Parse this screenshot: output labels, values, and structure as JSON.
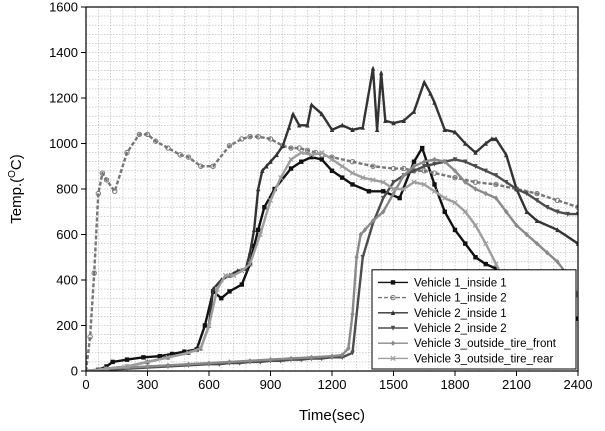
{
  "chart_data": {
    "type": "line",
    "title": "",
    "xlabel": "Time(sec)",
    "ylabel_main": "Temp.(",
    "ylabel_sup": "O",
    "ylabel_tail": "C)",
    "xlim": [
      0,
      2400
    ],
    "ylim": [
      0,
      1600
    ],
    "x_ticks": [
      0,
      300,
      600,
      900,
      1200,
      1500,
      1800,
      2100,
      2400
    ],
    "y_ticks": [
      0,
      200,
      400,
      600,
      800,
      1000,
      1200,
      1400,
      1600
    ],
    "grid": true,
    "legend_position": "bottom-right",
    "series": [
      {
        "name": "Vehicle 1_inside 1",
        "color": "#111111",
        "dash": "",
        "marker": "square",
        "x": [
          0,
          60,
          100,
          130,
          200,
          280,
          360,
          420,
          480,
          540,
          580,
          620,
          660,
          700,
          760,
          800,
          820,
          840,
          870,
          920,
          1000,
          1050,
          1100,
          1150,
          1200,
          1250,
          1300,
          1380,
          1450,
          1530,
          1600,
          1640,
          1700,
          1750,
          1800,
          1850,
          1900,
          1950,
          2000,
          2050,
          2100,
          2150,
          2200,
          2250,
          2300,
          2350,
          2400
        ],
        "y": [
          0,
          5,
          20,
          40,
          50,
          60,
          65,
          75,
          85,
          95,
          200,
          350,
          320,
          350,
          380,
          470,
          550,
          620,
          720,
          800,
          890,
          920,
          940,
          930,
          880,
          850,
          820,
          790,
          790,
          760,
          920,
          980,
          820,
          700,
          620,
          560,
          500,
          470,
          450,
          420,
          400,
          380,
          350,
          330,
          300,
          260,
          230
        ]
      },
      {
        "name": "Vehicle 1_inside 2",
        "color": "#777777",
        "dash": "4 2",
        "marker": "circle",
        "x": [
          0,
          20,
          40,
          60,
          80,
          100,
          140,
          200,
          260,
          300,
          340,
          400,
          460,
          500,
          560,
          620,
          700,
          760,
          800,
          840,
          900,
          960,
          1000,
          1040,
          1080,
          1120,
          1150,
          1200,
          1300,
          1400,
          1500,
          1550,
          1600,
          1650,
          1700,
          1800,
          1900,
          2000,
          2100,
          2200,
          2300,
          2400
        ],
        "y": [
          0,
          150,
          430,
          780,
          870,
          840,
          790,
          960,
          1040,
          1040,
          1010,
          980,
          950,
          940,
          900,
          900,
          990,
          1020,
          1030,
          1030,
          1020,
          990,
          980,
          980,
          970,
          960,
          950,
          940,
          920,
          900,
          890,
          890,
          880,
          880,
          870,
          850,
          830,
          820,
          800,
          780,
          750,
          720
        ]
      },
      {
        "name": "Vehicle 2_inside 1",
        "color": "#333333",
        "dash": "",
        "marker": "triangle",
        "x": [
          0,
          100,
          200,
          300,
          400,
          500,
          560,
          600,
          620,
          660,
          700,
          740,
          780,
          800,
          820,
          840,
          860,
          880,
          900,
          930,
          960,
          990,
          1010,
          1040,
          1080,
          1100,
          1150,
          1200,
          1250,
          1300,
          1350,
          1400,
          1420,
          1440,
          1460,
          1500,
          1550,
          1600,
          1650,
          1680,
          1700,
          1750,
          1800,
          1850,
          1900,
          1950,
          1980,
          2000,
          2050,
          2100,
          2150,
          2200,
          2300,
          2400
        ],
        "y": [
          0,
          10,
          20,
          40,
          60,
          80,
          100,
          200,
          360,
          400,
          420,
          440,
          450,
          520,
          620,
          800,
          880,
          900,
          920,
          950,
          990,
          1070,
          1130,
          1080,
          1080,
          1170,
          1130,
          1060,
          1080,
          1060,
          1070,
          1330,
          1060,
          1310,
          1100,
          1090,
          1100,
          1140,
          1270,
          1220,
          1180,
          1060,
          1050,
          1000,
          960,
          1000,
          1020,
          1020,
          950,
          800,
          700,
          660,
          620,
          560
        ]
      },
      {
        "name": "Vehicle 2_inside 2",
        "color": "#4d4d4d",
        "dash": "",
        "marker": "down-triangle",
        "x": [
          0,
          100,
          200,
          300,
          400,
          500,
          600,
          650,
          700,
          750,
          800,
          850,
          900,
          950,
          1000,
          1050,
          1100,
          1150,
          1200,
          1250,
          1300,
          1350,
          1400,
          1450,
          1500,
          1550,
          1600,
          1650,
          1700,
          1750,
          1800,
          1850,
          1900,
          1950,
          2000,
          2050,
          2100,
          2150,
          2200,
          2250,
          2300,
          2350,
          2400
        ],
        "y": [
          0,
          5,
          10,
          15,
          20,
          25,
          30,
          30,
          35,
          35,
          40,
          40,
          45,
          45,
          50,
          50,
          55,
          55,
          60,
          60,
          80,
          500,
          650,
          760,
          830,
          860,
          880,
          900,
          910,
          920,
          930,
          920,
          900,
          880,
          860,
          830,
          800,
          780,
          750,
          720,
          700,
          690,
          690
        ]
      },
      {
        "name": "Vehicle 3_outside_tire_front",
        "color": "#8a8a8a",
        "dash": "",
        "marker": "diamond",
        "x": [
          0,
          100,
          200,
          300,
          400,
          500,
          600,
          700,
          800,
          900,
          1000,
          1100,
          1200,
          1250,
          1280,
          1300,
          1320,
          1340,
          1360,
          1400,
          1450,
          1500,
          1550,
          1600,
          1650,
          1700,
          1750,
          1800,
          1850,
          1900,
          1950,
          2000,
          2050,
          2100,
          2150,
          2200,
          2250,
          2300,
          2350,
          2400
        ],
        "y": [
          0,
          10,
          15,
          20,
          25,
          30,
          35,
          40,
          45,
          50,
          55,
          60,
          65,
          70,
          100,
          250,
          500,
          600,
          620,
          660,
          700,
          780,
          860,
          900,
          920,
          930,
          920,
          880,
          830,
          800,
          780,
          760,
          700,
          640,
          600,
          560,
          520,
          480,
          420,
          330
        ]
      },
      {
        "name": "Vehicle 3_outside_tire_rear",
        "color": "#9e9e9e",
        "dash": "",
        "marker": "x",
        "x": [
          0,
          100,
          200,
          300,
          400,
          500,
          560,
          600,
          640,
          680,
          720,
          760,
          800,
          850,
          900,
          950,
          1000,
          1050,
          1100,
          1150,
          1200,
          1250,
          1300,
          1350,
          1400,
          1450,
          1500,
          1550,
          1600,
          1650,
          1700,
          1750,
          1800,
          1850,
          1900,
          1950,
          2000,
          2050,
          2100,
          2150,
          2200,
          2250,
          2300
        ],
        "y": [
          0,
          10,
          20,
          40,
          60,
          80,
          100,
          200,
          360,
          420,
          420,
          440,
          470,
          600,
          750,
          850,
          930,
          960,
          950,
          960,
          930,
          900,
          870,
          850,
          840,
          830,
          800,
          800,
          830,
          820,
          790,
          760,
          740,
          700,
          640,
          560,
          470,
          380,
          300,
          220,
          150,
          80,
          20
        ]
      }
    ]
  }
}
